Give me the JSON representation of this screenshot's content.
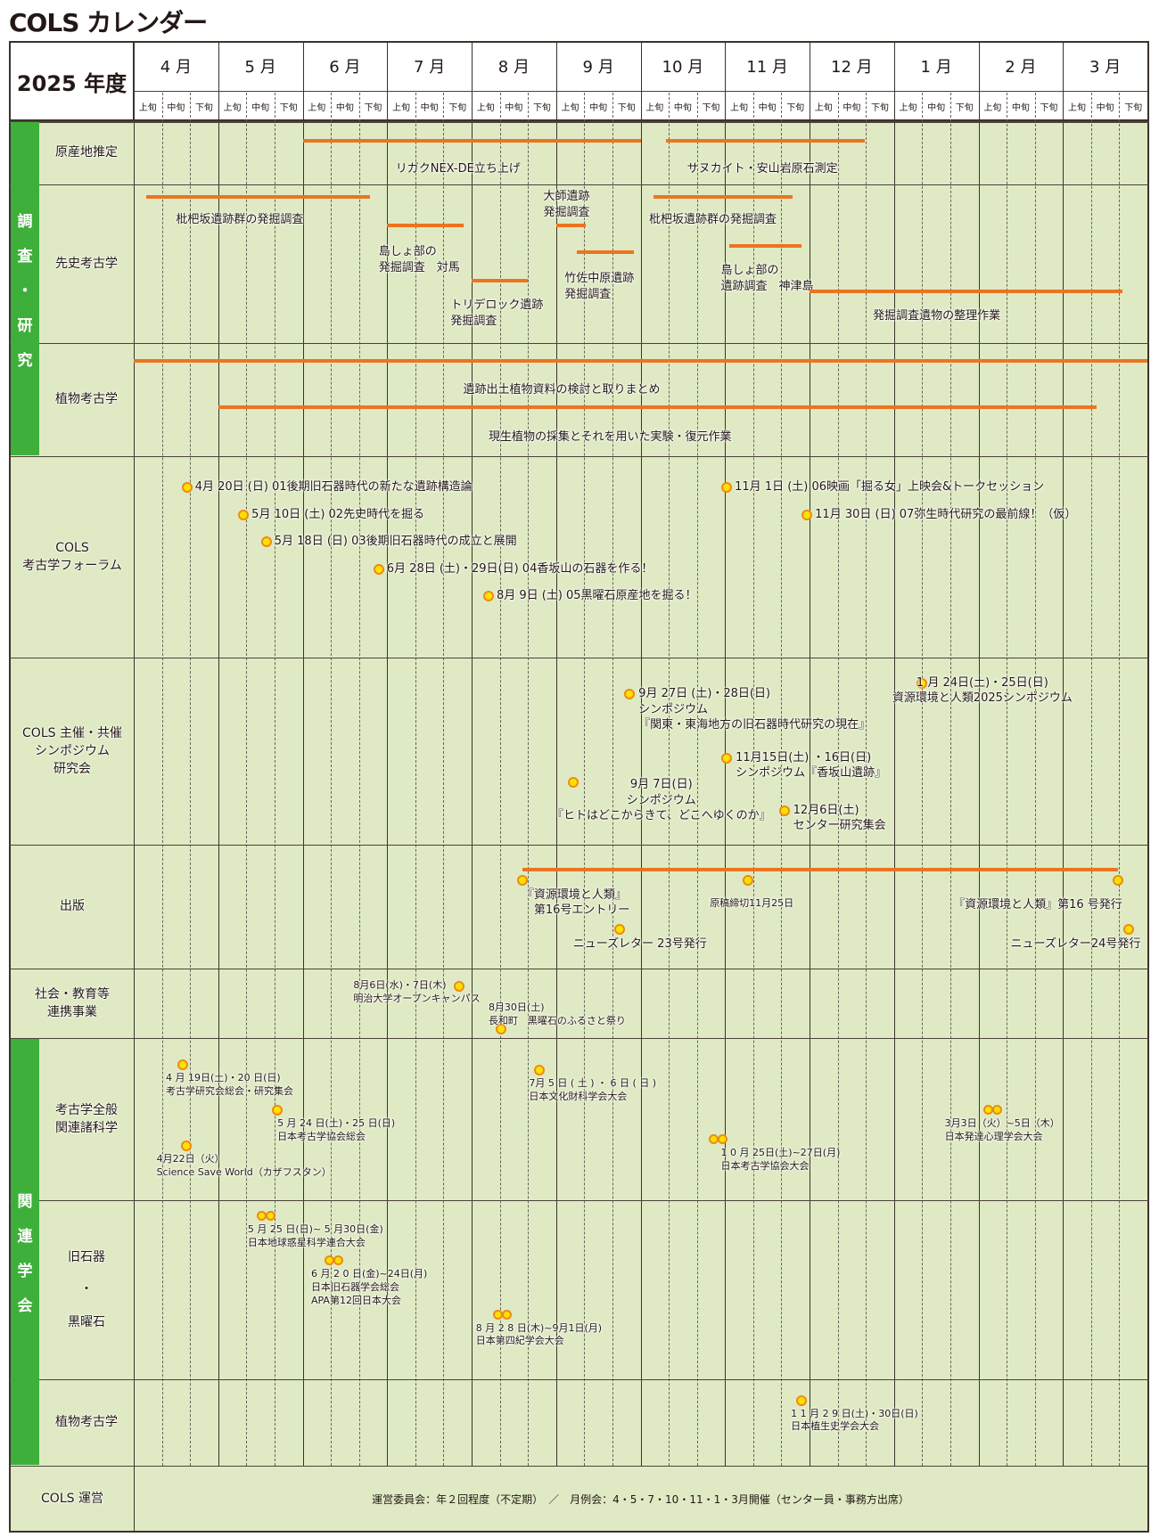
{
  "title": "COLS カレンダー",
  "chart_data": {
    "type": "table",
    "title": "COLS カレンダー",
    "fiscal_year_label": "2025 年度",
    "months": [
      "4 月",
      "5 月",
      "6 月",
      "7 月",
      "8 月",
      "9 月",
      "10 月",
      "11 月",
      "12 月",
      "1 月",
      "2 月",
      "3 月"
    ],
    "subperiods": [
      "上旬",
      "中旬",
      "下旬"
    ],
    "groups": [
      {
        "label": "調\n査\n・\n研\n究",
        "rows": [
          "gensanchi",
          "senshi",
          "shokubutsu1"
        ]
      },
      {
        "label": "関\n連\n学\n会",
        "rows": [
          "zenpan",
          "kyusekki",
          "shokubutsu2"
        ]
      }
    ],
    "rows": [
      {
        "id": "gensanchi",
        "label": "原産地推定",
        "bars": [
          {
            "start": 2.0,
            "end": 6.0,
            "label": "リガクNEX-DE立ち上げ",
            "label_at": 3.1,
            "y": 0.17,
            "label_y": 0.33
          },
          {
            "start": 6.3,
            "end": 8.65,
            "label": "サヌカイト・安山岩原石測定",
            "label_at": 6.55,
            "y": 0.17,
            "label_y": 0.33
          }
        ]
      },
      {
        "id": "senshi",
        "label": "先史考古学",
        "bars": [
          {
            "start": 0.15,
            "end": 2.8,
            "label": "枇杷坂遺跡群の発掘調査",
            "label_at": 0.5,
            "y": 0.02,
            "label_y": 0.05
          },
          {
            "start": 6.15,
            "end": 7.8,
            "label": "枇杷坂遺跡群の発掘調査",
            "label_at": 6.1,
            "y": 0.02,
            "label_y": 0.05
          },
          {
            "start": 3.0,
            "end": 3.9,
            "label": "島しょ部の\n発掘調査　対馬",
            "label_at": 2.9,
            "y": 0.2,
            "label_y": 0.25
          },
          {
            "start": 5.0,
            "end": 5.35,
            "label": "大師遺跡\n発掘調査",
            "label_at": 4.85,
            "y": 0.2,
            "label_y": -0.04
          },
          {
            "start": 5.25,
            "end": 5.92,
            "label": "竹佐中原遺跡\n発掘調査",
            "label_at": 5.1,
            "y": 0.37,
            "label_y": 0.42
          },
          {
            "start": 4.0,
            "end": 4.67,
            "label": "トリデロック遺跡\n発掘調査",
            "label_at": 3.75,
            "y": 0.55,
            "label_y": 0.59
          },
          {
            "start": 7.05,
            "end": 7.9,
            "label": "島しょ部の\n遺跡調査　神津島",
            "label_at": 6.95,
            "y": 0.33,
            "label_y": 0.37
          },
          {
            "start": 8.0,
            "end": 11.7,
            "label": "発掘調査遺物の整理作業",
            "label_at": 8.75,
            "y": 0.62,
            "label_y": 0.66
          }
        ]
      },
      {
        "id": "shokubutsu1",
        "label": "植物考古学",
        "bars": [
          {
            "start": 0.0,
            "end": 12.0,
            "label": "遺跡出土植物資料の検討と取りまとめ",
            "label_at": 3.9,
            "y": 0.08,
            "label_y": 0.17
          },
          {
            "start": 1.0,
            "end": 11.4,
            "label": "現生植物の採集とそれを用いた実験・復元作業",
            "label_at": 4.2,
            "y": 0.49,
            "label_y": 0.59
          }
        ]
      },
      {
        "id": "forum",
        "label": "COLS\n考古学フォーラム",
        "events": [
          {
            "at": 0.63,
            "y": 0.1,
            "text": "4月 20日 (日) 01後期旧石器時代の新たな遺跡構造論"
          },
          {
            "at": 1.3,
            "y": 0.24,
            "text": "5月 10日 (土) 02先史時代を掘る"
          },
          {
            "at": 1.57,
            "y": 0.37,
            "text": "5月 18日 (日) 03後期旧石器時代の成立と展開"
          },
          {
            "at": 2.9,
            "y": 0.51,
            "text": "6月 28日 (土)・29日(日) 04香坂山の石器を作る！"
          },
          {
            "at": 4.2,
            "y": 0.64,
            "text": "8月 9日 (土) 05黒曜石原産地を掘る！"
          },
          {
            "at": 7.02,
            "y": 0.1,
            "text": "11月 1日 (土) 06映画「掘る女」上映会&トークセッション"
          },
          {
            "at": 7.97,
            "y": 0.24,
            "text": "11月 30日 (日) 07弥生時代研究の最前線！（仮）"
          }
        ]
      },
      {
        "id": "symposium",
        "label": "COLS 主催・共催\nシンポジウム\n研究会",
        "events": [
          {
            "at": 5.87,
            "y": 0.14,
            "text": "9月 27日 (土)・28日(日)\nシンポジウム\n『関東・東海地方の旧石器時代研究の現在』",
            "text_dx": -0.05
          },
          {
            "at": 9.33,
            "y": 0.08,
            "text": "1 月 24日(土)・25日(日)\n資源環境と人類2025シンポジウム",
            "text_dx": -0.35
          },
          {
            "at": 7.02,
            "y": 0.48,
            "text": "11月15日(土) ・16日(日)\nシンポジウム『香坂山遺跡』",
            "text_dx": 0.15
          },
          {
            "at": 5.2,
            "y": 0.61,
            "text": "9月 7日(日)\nシンポジウム\n『ヒトはどこからきて、どこへゆくのか』",
            "text_dx": -0.25
          },
          {
            "at": 7.7,
            "y": 0.76,
            "text": "12月6日(土)\nセンター研究集会",
            "text_dx": 0.15
          }
        ]
      },
      {
        "id": "shuppan",
        "label": "出版",
        "bars": [
          {
            "start": 4.6,
            "end": 11.65,
            "label": "",
            "label_at": 0,
            "y": 0.13,
            "label_y": 0
          }
        ],
        "events": [
          {
            "at": 4.6,
            "y": 0.2,
            "text": "『資源環境と人類』\n　第16号エントリー",
            "text_dx": 0.0
          },
          {
            "at": 7.27,
            "y": 0.2,
            "small": true,
            "text": "原稿締切11月25日",
            "text_dx": -0.45,
            "text_dy": 0.08
          },
          {
            "at": 11.65,
            "y": 0.2,
            "text": "『資源環境と人類』第16 号発行",
            "text_dx": -1.95,
            "text_dy": 0.08
          },
          {
            "at": 5.75,
            "y": 0.6,
            "text": "ニューズレター 23号発行",
            "text_dx": -0.55
          },
          {
            "at": 11.78,
            "y": 0.6,
            "text": "ニューズレター24号発行",
            "text_dx": -1.4
          }
        ]
      },
      {
        "id": "shakai",
        "label": "社会・教育等\n連携事業",
        "events": [
          {
            "at": 3.85,
            "y": 0.1,
            "small": true,
            "text": "8月6日(水)・7日(木)\n明治大学オープンキャンパス",
            "text_dx": -1.25,
            "text_dy": 0.0,
            "text_left": true
          },
          {
            "at": 4.35,
            "y": 0.72,
            "small": true,
            "text": "8月30日(土)\n長和町　黒曜石のふるさと祭り",
            "text_dx": -0.15,
            "text_dy": -0.5
          }
        ]
      },
      {
        "id": "zenpan",
        "label": "考古学全般\n関連諸科学",
        "events": [
          {
            "at": 0.58,
            "y": 0.1,
            "small": true,
            "text": "4 月 19日(土)・20 日(日)\n考古学研究会総会・研究集会",
            "text_dx": -0.2
          },
          {
            "at": 1.7,
            "y": 0.38,
            "small": true,
            "text": "5 月 24 日(土)・25 日(日)\n日本考古学協会総会",
            "text_dx": 0.0
          },
          {
            "at": 0.62,
            "y": 0.6,
            "small": true,
            "text": "4月22日（火）\nScience Save World（カザフスタン）",
            "text_dx": -0.35
          },
          {
            "at": 4.8,
            "y": 0.13,
            "small": true,
            "text": "7月 5 日 ( 土 ) ・ 6 日 ( 日 )\n日本文化財科学会大会",
            "text_dx": -0.12
          },
          {
            "at": 6.9,
            "y": 0.56,
            "double": true,
            "small": true,
            "text": "1 0 月 25日(土)~27日(月)\n日本考古学協会大会",
            "text_dx": 0.05
          },
          {
            "at": 10.15,
            "y": 0.38,
            "double": true,
            "small": true,
            "text": "3月3日（火）~5日（木）\n日本発達心理学会大会",
            "text_dx": -0.55
          }
        ]
      },
      {
        "id": "kyusekki",
        "label": "旧石器\n・\n黒曜石",
        "events": [
          {
            "at": 1.55,
            "y": 0.03,
            "double": true,
            "small": true,
            "text": "5 月 25 日(日)~ 5 月30日(金)\n日本地球惑星科学連合大会",
            "text_dx": -0.2
          },
          {
            "at": 2.35,
            "y": 0.28,
            "double": true,
            "small": true,
            "text": "6 月 2 0 日(金)~24日(月)\n日本旧石器学会総会\nAPA第12回日本大会",
            "text_dx": -0.25
          },
          {
            "at": 4.35,
            "y": 0.58,
            "double": true,
            "small": true,
            "text": "8 月 2 8 日(木)~9月1日(月)\n日本第四紀学会大会",
            "text_dx": -0.3
          }
        ]
      },
      {
        "id": "shokubutsu2",
        "label": "植物考古学",
        "events": [
          {
            "at": 7.9,
            "y": 0.12,
            "small": true,
            "text": "1 1 月 2 9 日(土)・30日(日)\n日本植生史学会大会",
            "text_dx": -0.12
          }
        ]
      },
      {
        "id": "unei",
        "label": "COLS 運営",
        "note": "運営委員会：年２回程度（不定期）　／　月例会：4・5・7・10・11・1・3月開催（センター員・事務方出席）"
      }
    ]
  }
}
